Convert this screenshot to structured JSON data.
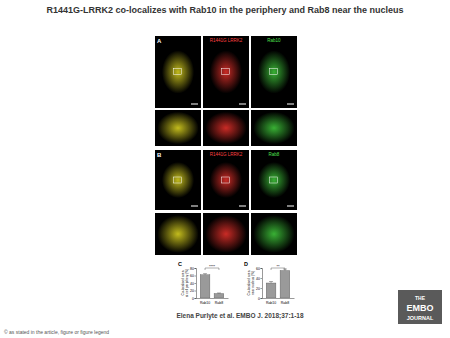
{
  "title": "R1441G-LRRK2 co-localizes with Rab10 in the periphery and Rab8 near the nucleus",
  "figure": {
    "panels": [
      {
        "label": "A",
        "channels": [
          "R1441G LRRK2",
          "Rab10"
        ]
      },
      {
        "label": "B",
        "channels": [
          "R1441G LRRK2",
          "Rab8"
        ]
      }
    ]
  },
  "chart_data": [
    {
      "type": "bar",
      "title": "C",
      "categories": [
        "Rab10",
        "Rab8"
      ],
      "values": [
        62,
        12
      ],
      "errors": [
        3,
        1.5
      ],
      "color": "#9a9a9a",
      "ylim": [
        0,
        80
      ],
      "yticks": [
        0,
        20,
        40,
        60,
        80
      ],
      "y_label": [
        "Co-localised area",
        "at cell periphery (%)"
      ],
      "annotation": "****"
    },
    {
      "type": "bar",
      "title": "D",
      "categories": [
        "Rab10",
        "Rab8"
      ],
      "values": [
        30,
        55
      ],
      "errors": [
        3,
        3
      ],
      "color": "#9a9a9a",
      "ylim": [
        0,
        60
      ],
      "yticks": [
        0,
        20,
        40,
        60
      ],
      "y_label": [
        "Co-localised area",
        "near nucleus (%)"
      ],
      "annotation": "**"
    }
  ],
  "citation": "Elena Purlyte et al. EMBO J. 2018;37:1-18",
  "logo": [
    "THE",
    "EMBO",
    "JOURNAL"
  ],
  "copyright": "© as stated in the article, figure or figure legend"
}
